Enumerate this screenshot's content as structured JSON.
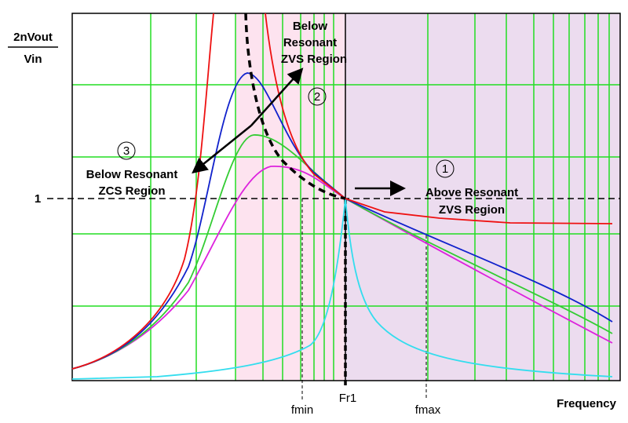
{
  "axis": {
    "y_label_top": "2nVout",
    "y_label_bottom": "Vin",
    "y_one": "1",
    "x_label": "Frequency"
  },
  "markers": {
    "fmin": "fmin",
    "fr1": "Fr1",
    "fmax": "fmax"
  },
  "regions": [
    {
      "number": "1",
      "lines": [
        "Above Resonant",
        "ZVS Region"
      ]
    },
    {
      "number": "2",
      "lines": [
        "Below",
        "Resonant",
        "ZVS Region"
      ]
    },
    {
      "number": "3",
      "lines": [
        "Below Resonant",
        "ZCS Region"
      ]
    }
  ]
}
